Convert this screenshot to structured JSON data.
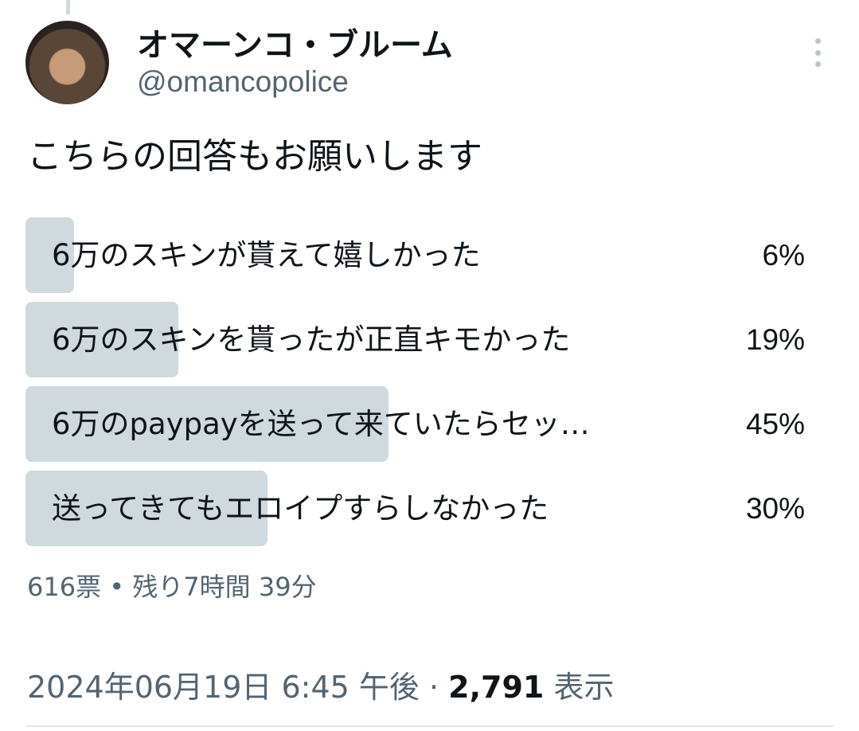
{
  "tweet": {
    "author_name": "オマーンコ・ブルーム",
    "handle": "@omancopolice",
    "text": "こちらの回答もお願いします",
    "poll": {
      "options": [
        {
          "label": "6万のスキンが貰えて嬉しかった",
          "percent": "6%",
          "value": 6
        },
        {
          "label": "6万のスキンを貰ったが正直キモかった",
          "percent": "19%",
          "value": 19
        },
        {
          "label": "6万のpaypayを送って来ていたらセッ…",
          "percent": "45%",
          "value": 45
        },
        {
          "label": "送ってきてもエロイプすらしなかった",
          "percent": "30%",
          "value": 30
        }
      ],
      "votes": "616票",
      "separator": " • ",
      "remaining": "残り7時間 39分"
    },
    "timestamp": "2024年06月19日 6:45 午後",
    "dot": " · ",
    "views_count": "2,791",
    "views_label": "表示"
  },
  "colors": {
    "bar": "#cfd9de",
    "secondary_text": "#536471"
  },
  "icons": {
    "menu": "more-vertical-icon"
  }
}
